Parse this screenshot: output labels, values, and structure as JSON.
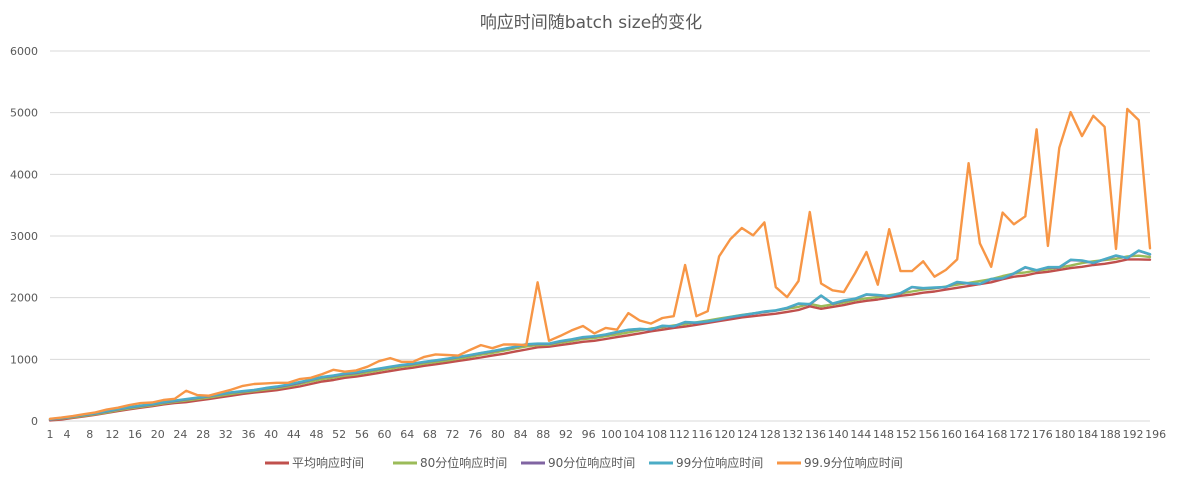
{
  "chart_data": {
    "type": "line",
    "title": "响应时间随batch size的变化",
    "xlabel": "",
    "ylabel": "",
    "ylim": [
      0,
      6000
    ],
    "y_ticks": [
      0,
      1000,
      2000,
      3000,
      4000,
      5000,
      6000
    ],
    "x_tick_labels": [
      "1",
      "4",
      "8",
      "12",
      "16",
      "20",
      "24",
      "28",
      "32",
      "36",
      "40",
      "44",
      "48",
      "52",
      "56",
      "60",
      "64",
      "68",
      "72",
      "76",
      "80",
      "84",
      "88",
      "92",
      "96",
      "100",
      "104",
      "108",
      "112",
      "116",
      "120",
      "124",
      "128",
      "132",
      "136",
      "140",
      "144",
      "148",
      "152",
      "156",
      "160",
      "164",
      "168",
      "172",
      "176",
      "180",
      "184",
      "188",
      "192",
      "196"
    ],
    "x_start": 1,
    "x_step": 2,
    "grid": true,
    "legend_position": "bottom",
    "series": [
      {
        "name": "平均响应时间",
        "color": "#c0504d",
        "values": [
          10,
          25,
          50,
          75,
          100,
          130,
          160,
          190,
          215,
          240,
          270,
          290,
          305,
          330,
          355,
          385,
          410,
          440,
          460,
          480,
          500,
          530,
          560,
          600,
          640,
          665,
          700,
          720,
          750,
          780,
          810,
          840,
          865,
          895,
          920,
          945,
          975,
          1000,
          1030,
          1060,
          1090,
          1125,
          1160,
          1195,
          1205,
          1230,
          1255,
          1285,
          1300,
          1330,
          1360,
          1390,
          1420,
          1455,
          1480,
          1510,
          1530,
          1560,
          1590,
          1620,
          1650,
          1680,
          1700,
          1720,
          1740,
          1770,
          1800,
          1860,
          1820,
          1850,
          1880,
          1920,
          1950,
          1970,
          2000,
          2030,
          2050,
          2080,
          2100,
          2130,
          2160,
          2190,
          2220,
          2250,
          2300,
          2340,
          2360,
          2400,
          2420,
          2450,
          2480,
          2500,
          2530,
          2550,
          2580,
          2620,
          2620,
          2615
        ]
      },
      {
        "name": "80分位响应时间",
        "color": "#9bbb59",
        "values": [
          20,
          40,
          60,
          85,
          110,
          140,
          175,
          205,
          230,
          255,
          285,
          310,
          330,
          355,
          380,
          410,
          440,
          465,
          485,
          510,
          530,
          560,
          600,
          640,
          680,
          705,
          735,
          755,
          790,
          820,
          850,
          880,
          900,
          930,
          955,
          980,
          1010,
          1040,
          1075,
          1105,
          1140,
          1175,
          1210,
          1230,
          1235,
          1270,
          1295,
          1330,
          1345,
          1375,
          1405,
          1435,
          1470,
          1500,
          1520,
          1550,
          1570,
          1600,
          1630,
          1660,
          1690,
          1720,
          1745,
          1765,
          1790,
          1820,
          1850,
          1900,
          1860,
          1890,
          1920,
          1960,
          1990,
          2010,
          2040,
          2070,
          2100,
          2130,
          2150,
          2180,
          2210,
          2240,
          2270,
          2300,
          2350,
          2390,
          2410,
          2440,
          2460,
          2490,
          2520,
          2560,
          2590,
          2610,
          2630,
          2670,
          2680,
          2660
        ]
      },
      {
        "name": "90分位响应时间",
        "color": "#8064a2",
        "values": [
          25,
          45,
          70,
          95,
          120,
          155,
          190,
          220,
          245,
          270,
          300,
          325,
          350,
          375,
          400,
          430,
          460,
          480,
          500,
          530,
          550,
          580,
          620,
          665,
          710,
          730,
          760,
          780,
          815,
          845,
          875,
          905,
          925,
          955,
          980,
          1005,
          1035,
          1065,
          1100,
          1130,
          1165,
          1200,
          1240,
          1250,
          1250,
          1290,
          1320,
          1355,
          1370,
          1400,
          1440,
          1475,
          1490,
          1480,
          1540,
          1530,
          1600,
          1590,
          1610,
          1640,
          1680,
          1710,
          1740,
          1770,
          1790,
          1830,
          1900,
          1890,
          2030,
          1900,
          1950,
          1980,
          2050,
          2040,
          2020,
          2070,
          2170,
          2150,
          2160,
          2170,
          2250,
          2230,
          2220,
          2300,
          2310,
          2390,
          2490,
          2440,
          2490,
          2490,
          2610,
          2600,
          2560,
          2620,
          2680,
          2640,
          2760,
          2700
        ]
      },
      {
        "name": "99分位响应时间",
        "color": "#4bacc6",
        "values": [
          30,
          50,
          75,
          100,
          125,
          160,
          195,
          225,
          250,
          275,
          305,
          330,
          355,
          380,
          405,
          435,
          465,
          485,
          505,
          535,
          560,
          590,
          630,
          670,
          715,
          740,
          770,
          790,
          820,
          850,
          880,
          910,
          930,
          960,
          985,
          1010,
          1040,
          1070,
          1105,
          1135,
          1170,
          1205,
          1245,
          1255,
          1255,
          1295,
          1325,
          1360,
          1375,
          1405,
          1445,
          1480,
          1495,
          1485,
          1545,
          1535,
          1605,
          1595,
          1615,
          1645,
          1685,
          1715,
          1745,
          1775,
          1795,
          1835,
          1905,
          1895,
          2035,
          1905,
          1955,
          1985,
          2055,
          2045,
          2025,
          2075,
          2175,
          2155,
          2165,
          2175,
          2255,
          2235,
          2225,
          2305,
          2315,
          2395,
          2495,
          2445,
          2495,
          2495,
          2615,
          2605,
          2565,
          2625,
          2685,
          2645,
          2765,
          2705
        ]
      },
      {
        "name": "99.9分位响应时间",
        "color": "#f79646",
        "values": [
          35,
          55,
          80,
          110,
          140,
          185,
          215,
          260,
          290,
          300,
          340,
          360,
          490,
          420,
          410,
          460,
          510,
          570,
          600,
          610,
          620,
          620,
          680,
          700,
          760,
          830,
          800,
          820,
          880,
          970,
          1020,
          960,
          960,
          1040,
          1080,
          1070,
          1060,
          1150,
          1230,
          1180,
          1240,
          1240,
          1230,
          2250,
          1300,
          1380,
          1470,
          1540,
          1420,
          1510,
          1480,
          1750,
          1630,
          1580,
          1670,
          1700,
          2530,
          1700,
          1780,
          2670,
          2950,
          3130,
          3010,
          3220,
          2170,
          2010,
          2270,
          3390,
          2230,
          2120,
          2090,
          2400,
          2740,
          2210,
          3110,
          2430,
          2430,
          2590,
          2340,
          2450,
          2620,
          4180,
          2880,
          2500,
          3380,
          3190,
          3320,
          4730,
          2840,
          4430,
          5010,
          4620,
          4950,
          4770,
          2790,
          5060,
          4880,
          2800
        ]
      }
    ]
  }
}
